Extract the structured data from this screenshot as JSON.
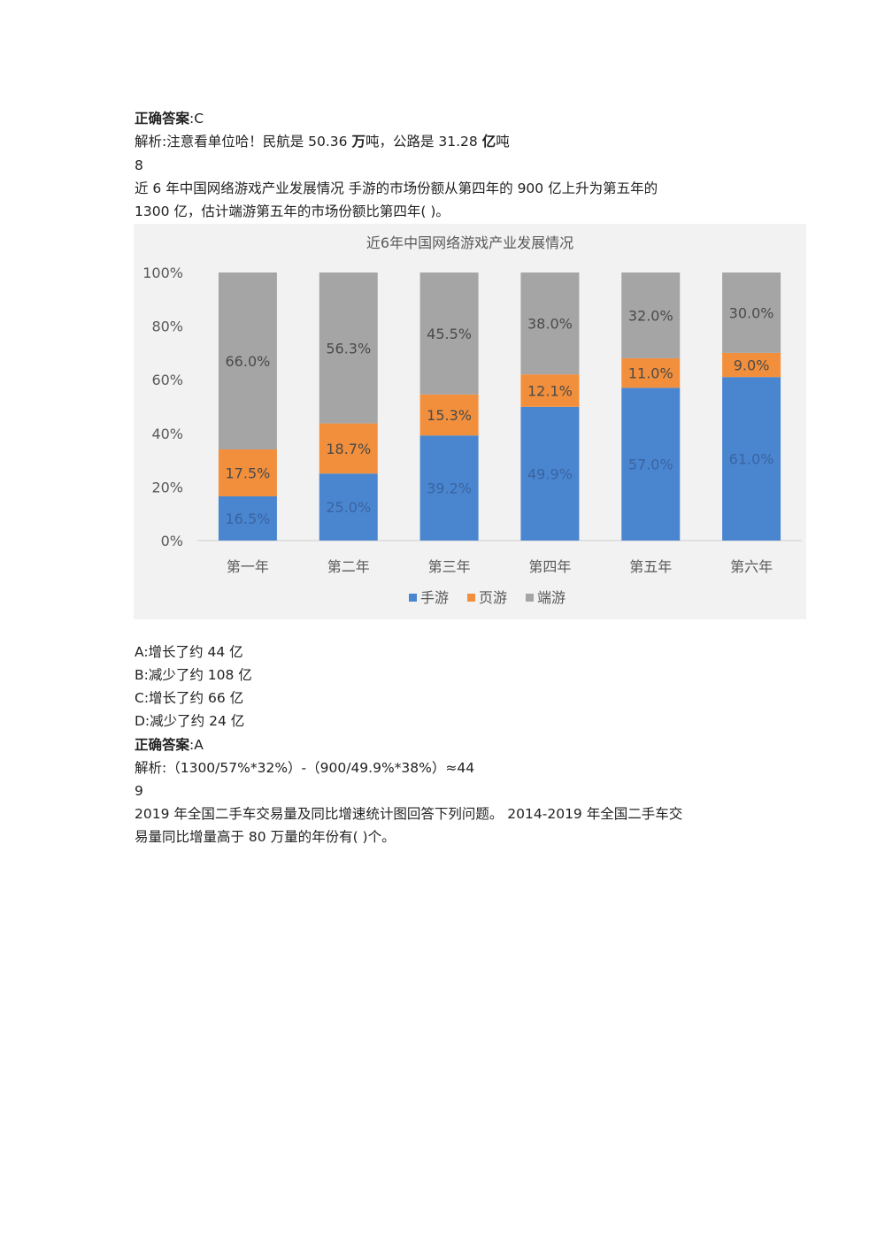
{
  "q7": {
    "answer_label": "正确答案",
    "answer_value": ":C",
    "analysis_prefix": "解析:注意看单位哈！民航是 50.36 ",
    "analysis_unit1": "万",
    "analysis_mid": "吨，公路是 31.28 ",
    "analysis_unit2": "亿",
    "analysis_suffix": "吨"
  },
  "q8": {
    "number": "8",
    "question_line1": "近 6 年中国网络游戏产业发展情况  手游的市场份额从第四年的 900 亿上升为第五年的",
    "question_line2": "1300 亿，估计端游第五年的市场份额比第四年(  )。",
    "options": [
      "A:增长了约 44 亿",
      "B:减少了约 108 亿",
      "C:增长了约 66 亿",
      "D:减少了约 24 亿"
    ],
    "answer_label": "正确答案",
    "answer_value": ":A",
    "analysis": "解析:（1300/57%*32%）-（900/49.9%*38%）≈44"
  },
  "q9": {
    "number": "9",
    "question_line1": "2019 年全国二手车交易量及同比增速统计图回答下列问题。  2014-2019 年全国二手车交",
    "question_line2": "易量同比增量高于 80 万量的年份有(  )个。"
  },
  "chart_data": {
    "type": "bar",
    "stacked": true,
    "title": "近6年中国网络游戏产业发展情况",
    "categories": [
      "第一年",
      "第二年",
      "第三年",
      "第四年",
      "第五年",
      "第六年"
    ],
    "series": [
      {
        "name": "手游",
        "color": "#4a86d0",
        "values": [
          16.5,
          25.0,
          39.2,
          49.9,
          57.0,
          61.0
        ],
        "labels": [
          "16.5%",
          "25.0%",
          "39.2%",
          "49.9%",
          "57.0%",
          "61.0%"
        ]
      },
      {
        "name": "页游",
        "color": "#f28f3c",
        "values": [
          17.5,
          18.7,
          15.3,
          12.1,
          11.0,
          9.0
        ],
        "labels": [
          "17.5%",
          "18.7%",
          "15.3%",
          "12.1%",
          "11.0%",
          "9.0%"
        ]
      },
      {
        "name": "端游",
        "color": "#a5a5a5",
        "values": [
          66.0,
          56.3,
          45.5,
          38.0,
          32.0,
          30.0
        ],
        "labels": [
          "66.0%",
          "56.3%",
          "45.5%",
          "38.0%",
          "32.0%",
          "30.0%"
        ]
      }
    ],
    "yticks": [
      "0%",
      "20%",
      "40%",
      "60%",
      "80%",
      "100%"
    ],
    "ylim": [
      0,
      100
    ],
    "legend_position": "bottom",
    "grid": false
  }
}
